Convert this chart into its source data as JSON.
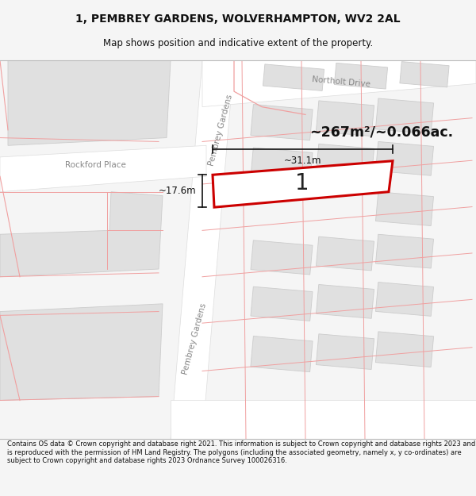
{
  "title_line1": "1, PEMBREY GARDENS, WOLVERHAMPTON, WV2 2AL",
  "title_line2": "Map shows position and indicative extent of the property.",
  "footer_text": "Contains OS data © Crown copyright and database right 2021. This information is subject to Crown copyright and database rights 2023 and is reproduced with the permission of HM Land Registry. The polygons (including the associated geometry, namely x, y co-ordinates) are subject to Crown copyright and database rights 2023 Ordnance Survey 100026316.",
  "area_label": "~267m²/~0.066ac.",
  "plot_number": "1",
  "dim_width": "~31.1m",
  "dim_height": "~17.6m",
  "bg_color": "#f5f5f5",
  "map_bg": "#f0f0f0",
  "plot_fill": "#ffffff",
  "plot_edge": "#cc0000",
  "road_fill": "#ffffff",
  "building_color": "#e0e0e0",
  "building_edge": "#cccccc",
  "boundary_color": "#f0a0a0",
  "street_label_color": "#888888",
  "fig_width": 6.0,
  "fig_height": 6.25,
  "title_fontsize": 10,
  "subtitle_fontsize": 8.5,
  "footer_fontsize": 6.0
}
